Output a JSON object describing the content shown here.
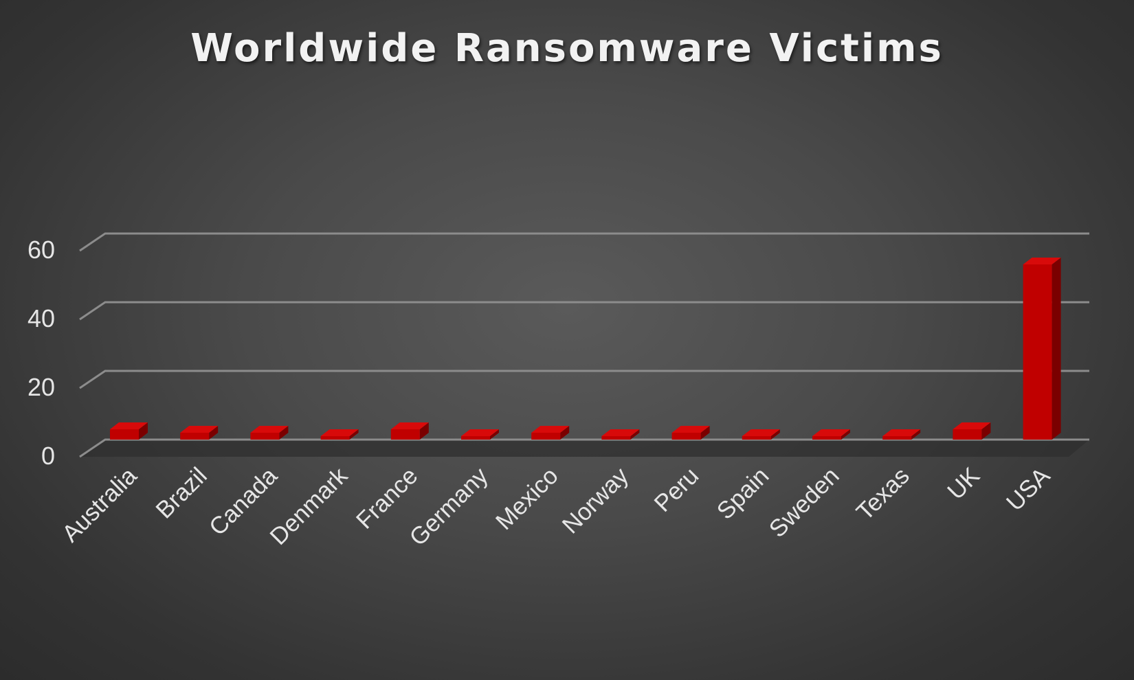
{
  "chart_data": {
    "type": "bar",
    "title": "Worldwide Ransomware Victims",
    "categories": [
      "Australia",
      "Brazil",
      "Canada",
      "Denmark",
      "France",
      "Germany",
      "Mexico",
      "Norway",
      "Peru",
      "Spain",
      "Sweden",
      "Texas",
      "UK",
      "USA"
    ],
    "values": [
      3,
      2,
      2,
      1,
      3,
      1,
      2,
      1,
      2,
      1,
      1,
      1,
      3,
      51
    ],
    "yticks": [
      0,
      20,
      40,
      60
    ],
    "ylim": [
      0,
      60
    ],
    "grid": true,
    "legend": "none",
    "style": "3d-column"
  },
  "colors": {
    "bar_front": "#c00000",
    "bar_top": "#d80a0a",
    "bar_side": "#7a0000",
    "gridline": "#8c8c8c",
    "text": "#e6e6e6"
  }
}
